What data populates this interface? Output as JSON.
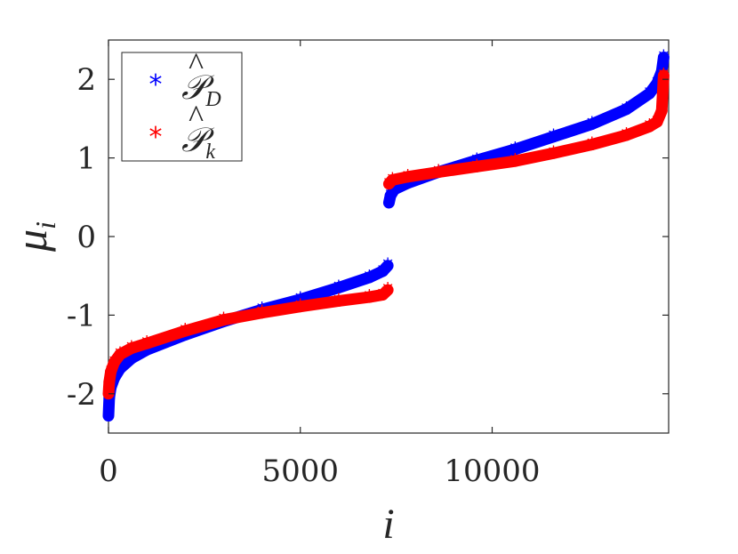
{
  "chart_data": {
    "type": "scatter",
    "xlabel": "i",
    "ylabel_main": "μ",
    "ylabel_sub": "i",
    "xlim": [
      0,
      14600
    ],
    "ylim": [
      -2.5,
      2.5
    ],
    "xticks": [
      0,
      5000,
      10000
    ],
    "xtick_labels": [
      "0",
      "5000",
      "10000"
    ],
    "yticks": [
      -2,
      -1,
      0,
      1,
      2
    ],
    "ytick_labels": [
      "-2",
      "-1",
      "0",
      "1",
      "2"
    ],
    "grid": false,
    "legend_position": "top-left",
    "marker": "*",
    "series": [
      {
        "name": "P̂_D",
        "legend_main": "𝒫",
        "legend_hat": "^",
        "legend_sub": "D",
        "color": "#0000ff",
        "points": [
          [
            0,
            -2.28
          ],
          [
            20,
            -2.05
          ],
          [
            60,
            -1.92
          ],
          [
            150,
            -1.8
          ],
          [
            300,
            -1.68
          ],
          [
            600,
            -1.55
          ],
          [
            1000,
            -1.44
          ],
          [
            2000,
            -1.25
          ],
          [
            3000,
            -1.08
          ],
          [
            4000,
            -0.93
          ],
          [
            5000,
            -0.8
          ],
          [
            6000,
            -0.65
          ],
          [
            6800,
            -0.52
          ],
          [
            7150,
            -0.44
          ],
          [
            7280,
            -0.37
          ],
          [
            7310,
            0.43
          ],
          [
            7350,
            0.52
          ],
          [
            7450,
            0.6
          ],
          [
            7800,
            0.68
          ],
          [
            8600,
            0.82
          ],
          [
            9600,
            0.97
          ],
          [
            10600,
            1.11
          ],
          [
            11600,
            1.27
          ],
          [
            12600,
            1.43
          ],
          [
            13500,
            1.62
          ],
          [
            14100,
            1.82
          ],
          [
            14300,
            1.95
          ],
          [
            14420,
            2.1
          ],
          [
            14470,
            2.28
          ]
        ]
      },
      {
        "name": "P̂_k",
        "legend_main": "𝒫",
        "legend_hat": "^",
        "legend_sub": "k",
        "color": "#ff0000",
        "points": [
          [
            0,
            -2.0
          ],
          [
            20,
            -1.85
          ],
          [
            60,
            -1.72
          ],
          [
            150,
            -1.6
          ],
          [
            300,
            -1.5
          ],
          [
            600,
            -1.42
          ],
          [
            1000,
            -1.36
          ],
          [
            2000,
            -1.2
          ],
          [
            3000,
            -1.06
          ],
          [
            4000,
            -0.97
          ],
          [
            5000,
            -0.89
          ],
          [
            6000,
            -0.82
          ],
          [
            6800,
            -0.77
          ],
          [
            7150,
            -0.74
          ],
          [
            7280,
            -0.68
          ],
          [
            7310,
            0.67
          ],
          [
            7400,
            0.72
          ],
          [
            7800,
            0.76
          ],
          [
            8600,
            0.82
          ],
          [
            9600,
            0.89
          ],
          [
            10600,
            0.96
          ],
          [
            11600,
            1.06
          ],
          [
            12600,
            1.17
          ],
          [
            13500,
            1.29
          ],
          [
            14100,
            1.4
          ],
          [
            14300,
            1.46
          ],
          [
            14420,
            1.6
          ],
          [
            14470,
            2.05
          ]
        ]
      }
    ]
  }
}
